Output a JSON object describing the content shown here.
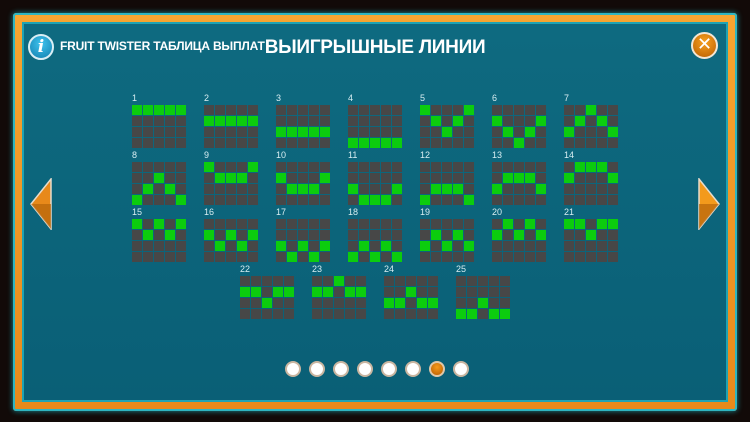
{
  "header": {
    "app_title": "FRUIT TWISTER ТАБЛИЦА ВЫПЛАТ",
    "page_title": "ВЫИГРЫШНЫЕ ЛИНИИ",
    "info_icon": "info-icon",
    "close_icon": "close-icon"
  },
  "colors": {
    "panel": "#0e6a80",
    "frame": "#f7a530",
    "cell_off": "#474747",
    "cell_on": "#0ccc0e",
    "accent": "#e8891a"
  },
  "grid": {
    "columns": 5,
    "rows": 4
  },
  "paylines": [
    {
      "label": "1",
      "rows": [
        0,
        0,
        0,
        0,
        0
      ]
    },
    {
      "label": "2",
      "rows": [
        1,
        1,
        1,
        1,
        1
      ]
    },
    {
      "label": "3",
      "rows": [
        2,
        2,
        2,
        2,
        2
      ]
    },
    {
      "label": "4",
      "rows": [
        3,
        3,
        3,
        3,
        3
      ]
    },
    {
      "label": "5",
      "rows": [
        0,
        1,
        2,
        1,
        0
      ]
    },
    {
      "label": "6",
      "rows": [
        1,
        2,
        3,
        2,
        1
      ]
    },
    {
      "label": "7",
      "rows": [
        2,
        1,
        0,
        1,
        2
      ]
    },
    {
      "label": "8",
      "rows": [
        3,
        2,
        1,
        2,
        3
      ]
    },
    {
      "label": "9",
      "rows": [
        0,
        1,
        1,
        1,
        0
      ]
    },
    {
      "label": "10",
      "rows": [
        1,
        2,
        2,
        2,
        1
      ]
    },
    {
      "label": "11",
      "rows": [
        2,
        3,
        3,
        3,
        2
      ]
    },
    {
      "label": "12",
      "rows": [
        3,
        2,
        2,
        2,
        3
      ]
    },
    {
      "label": "13",
      "rows": [
        2,
        1,
        1,
        1,
        2
      ]
    },
    {
      "label": "14",
      "rows": [
        1,
        0,
        0,
        0,
        1
      ]
    },
    {
      "label": "15",
      "rows": [
        0,
        1,
        0,
        1,
        0
      ]
    },
    {
      "label": "16",
      "rows": [
        1,
        2,
        1,
        2,
        1
      ]
    },
    {
      "label": "17",
      "rows": [
        2,
        3,
        2,
        3,
        2
      ]
    },
    {
      "label": "18",
      "rows": [
        3,
        2,
        3,
        2,
        3
      ]
    },
    {
      "label": "19",
      "rows": [
        2,
        1,
        2,
        1,
        2
      ]
    },
    {
      "label": "20",
      "rows": [
        1,
        0,
        1,
        0,
        1
      ]
    },
    {
      "label": "21",
      "rows": [
        0,
        0,
        1,
        0,
        0
      ]
    },
    {
      "label": "22",
      "rows": [
        1,
        1,
        2,
        1,
        1
      ]
    },
    {
      "label": "23",
      "rows": [
        1,
        1,
        0,
        1,
        1
      ]
    },
    {
      "label": "24",
      "rows": [
        2,
        2,
        1,
        2,
        2
      ]
    },
    {
      "label": "25",
      "rows": [
        3,
        3,
        2,
        3,
        3
      ]
    }
  ],
  "pagination": {
    "pages": 8,
    "current": 7
  }
}
